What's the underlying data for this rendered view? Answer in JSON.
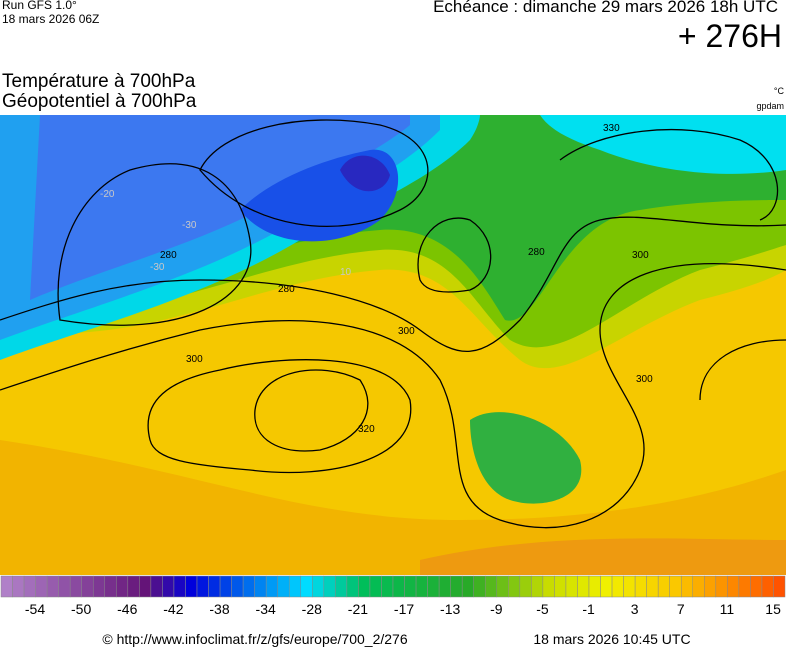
{
  "header": {
    "run": "Run GFS 1.0°",
    "run_date": "18 mars 2026 06Z",
    "valid": "Echéance : dimanche 29 mars 2026 18h UTC",
    "lead": "+ 276H"
  },
  "fields": {
    "temperature": "Température à 700hPa",
    "geopotential": "Géopotentiel à 700hPa",
    "temperature_unit": "°C",
    "geopotential_unit": "gpdam"
  },
  "map": {
    "contour_labels": [
      "280",
      "280",
      "300",
      "300",
      "300",
      "300",
      "320",
      "330",
      "280",
      "-30",
      "-30",
      "-20",
      "10"
    ]
  },
  "colorbar": {
    "labels": [
      "-54",
      "-50",
      "-46",
      "-42",
      "-38",
      "-34",
      "-28",
      "-21",
      "-17",
      "-13",
      "-9",
      "-5",
      "-1",
      "3",
      "7",
      "11",
      "15"
    ]
  },
  "footer": {
    "url": "© http://www.infoclimat.fr/z/gfs/europe/700_2/276",
    "generated": "18 mars 2026 10:45 UTC"
  }
}
